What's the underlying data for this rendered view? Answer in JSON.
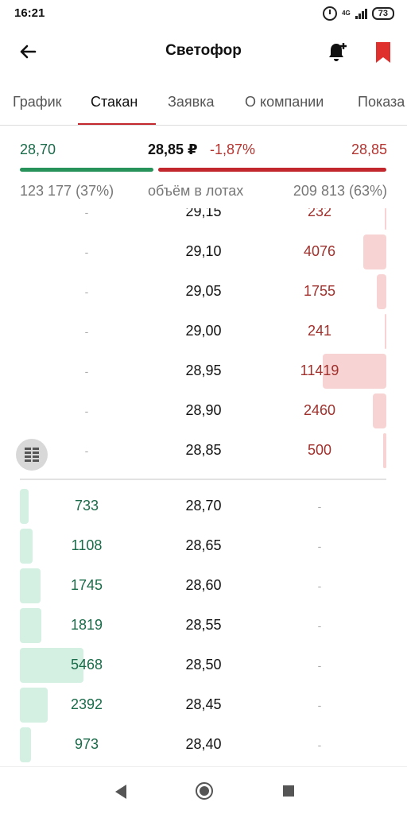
{
  "status_bar": {
    "time": "16:21",
    "network": "4G",
    "battery": "73"
  },
  "app_bar": {
    "title": "Светофор"
  },
  "tabs": [
    {
      "label": "График",
      "active": false
    },
    {
      "label": "Стакан",
      "active": true
    },
    {
      "label": "Заявка",
      "active": false
    },
    {
      "label": "О компании",
      "active": false
    },
    {
      "label": "Показа",
      "active": false
    }
  ],
  "summary": {
    "best_bid": "28,70",
    "last_price": "28,85 ₽",
    "change": "-1,87%",
    "best_ask": "28,85",
    "bid_volume": "123 177 (37%)",
    "volume_label": "объём в лотах",
    "ask_volume": "209 813 (63%)",
    "bid_share": 0.37
  },
  "order_book": {
    "asks": [
      {
        "bid": "-",
        "price": "29,15",
        "ask": "232",
        "level": 0.0203
      },
      {
        "bid": "-",
        "price": "29,10",
        "ask": "4076",
        "level": 0.357
      },
      {
        "bid": "-",
        "price": "29,05",
        "ask": "1755",
        "level": 0.154
      },
      {
        "bid": "-",
        "price": "29,00",
        "ask": "241",
        "level": 0.021
      },
      {
        "bid": "-",
        "price": "28,95",
        "ask": "11419",
        "level": 1.0
      },
      {
        "bid": "-",
        "price": "28,90",
        "ask": "2460",
        "level": 0.215
      },
      {
        "bid": "-",
        "price": "28,85",
        "ask": "500",
        "level": 0.044
      }
    ],
    "bids": [
      {
        "bid": "733",
        "price": "28,70",
        "ask": "-",
        "level": 0.134
      },
      {
        "bid": "1108",
        "price": "28,65",
        "ask": "-",
        "level": 0.203
      },
      {
        "bid": "1745",
        "price": "28,60",
        "ask": "-",
        "level": 0.319
      },
      {
        "bid": "1819",
        "price": "28,55",
        "ask": "-",
        "level": 0.333
      },
      {
        "bid": "5468",
        "price": "28,50",
        "ask": "-",
        "level": 1.0
      },
      {
        "bid": "2392",
        "price": "28,45",
        "ask": "-",
        "level": 0.437
      },
      {
        "bid": "973",
        "price": "28,40",
        "ask": "-",
        "level": 0.178
      }
    ]
  },
  "colors": {
    "accent": "#c2272d",
    "bid_text": "#1a6b4a",
    "ask_text": "#a0302c",
    "bid_fill": "#d4f0e3",
    "ask_fill": "#f8d3d3"
  }
}
